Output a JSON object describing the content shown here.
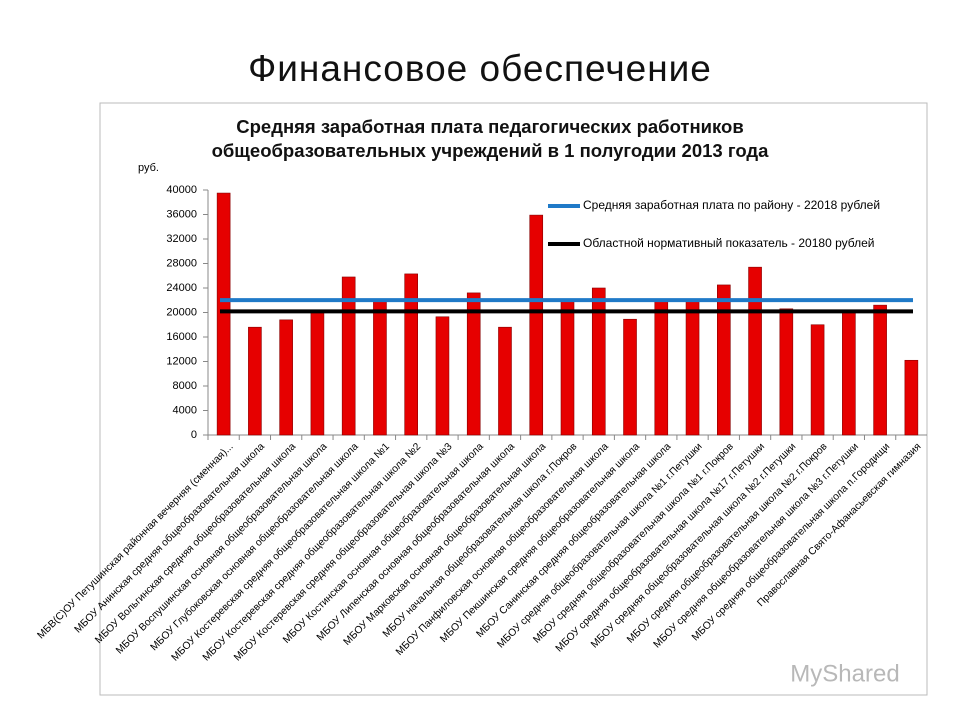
{
  "slide_title": "Финансовое обеспечение",
  "watermark": "MyShared",
  "chart_data": {
    "type": "bar",
    "title": "Средняя заработная плата педагогических работников общеобразовательных учреждений в 1 полугодии 2013 года",
    "y_label": "руб.",
    "categories": [
      "МБВ(С)ОУ Петушинская районная вечерняя (сменная)...",
      "МБОУ Анинская средняя общеобразовательная школа",
      "МБОУ Вольгинская средняя общеобразовательная школа",
      "МБОУ Воспушинская основная общеобразовательная школа",
      "МБОУ Глубоковская основная общеобразовательная школа",
      "МБОУ Костеревская средняя общеобразовательная школа №1",
      "МБОУ Костеревская средняя общеобразовательная школа №2",
      "МБОУ Костеревская средняя общеобразовательная школа №3",
      "МБОУ Костинская основная общеобразовательная школа",
      "МБОУ Липенская основная общеобразовательная школа",
      "МБОУ Марковская основная общеобразовательная школа",
      "МБОУ начальная общеобразовательная школа г.Покров",
      "МБОУ Панфиловская основная общеобразовательная школа",
      "МБОУ Пекшинская средняя общеобразовательная школа",
      "МБОУ Санинская средняя общеобразовательная школа",
      "МБОУ средняя общеобразовательная школа №1 г.Петушки",
      "МБОУ средняя общеобразовательная школа №1 г.Покров",
      "МБОУ средняя общеобразовательная школа №17 г.Петушки",
      "МБОУ средняя общеобразовательная школа №2 г.Петушки",
      "МБОУ средняя общеобразовательная школа №2 г.Покров",
      "МБОУ средняя общеобразовательная школа №3 г.Петушки",
      "МБОУ средняя общеобразовательная школа п.Городищи",
      "Православная Свято-Афанасьевская гимназия"
    ],
    "values": [
      39500,
      17600,
      18800,
      20100,
      25800,
      21800,
      26300,
      19300,
      23200,
      17600,
      35900,
      21800,
      24000,
      18900,
      21800,
      21800,
      24500,
      27400,
      20600,
      18000,
      20000,
      21200,
      12200
    ],
    "color": "#e60000",
    "reference_lines": [
      {
        "name": "Средняя заработная плата по району - 22018 рублей",
        "value": 22018,
        "color": "#1f7ac8"
      },
      {
        "name": "Областной нормативный показатель - 20180 рублей",
        "value": 20180,
        "color": "#000000"
      }
    ],
    "ylim": [
      0,
      40000
    ],
    "yticks": [
      0,
      4000,
      8000,
      12000,
      16000,
      20000,
      24000,
      28000,
      32000,
      36000,
      40000
    ]
  }
}
